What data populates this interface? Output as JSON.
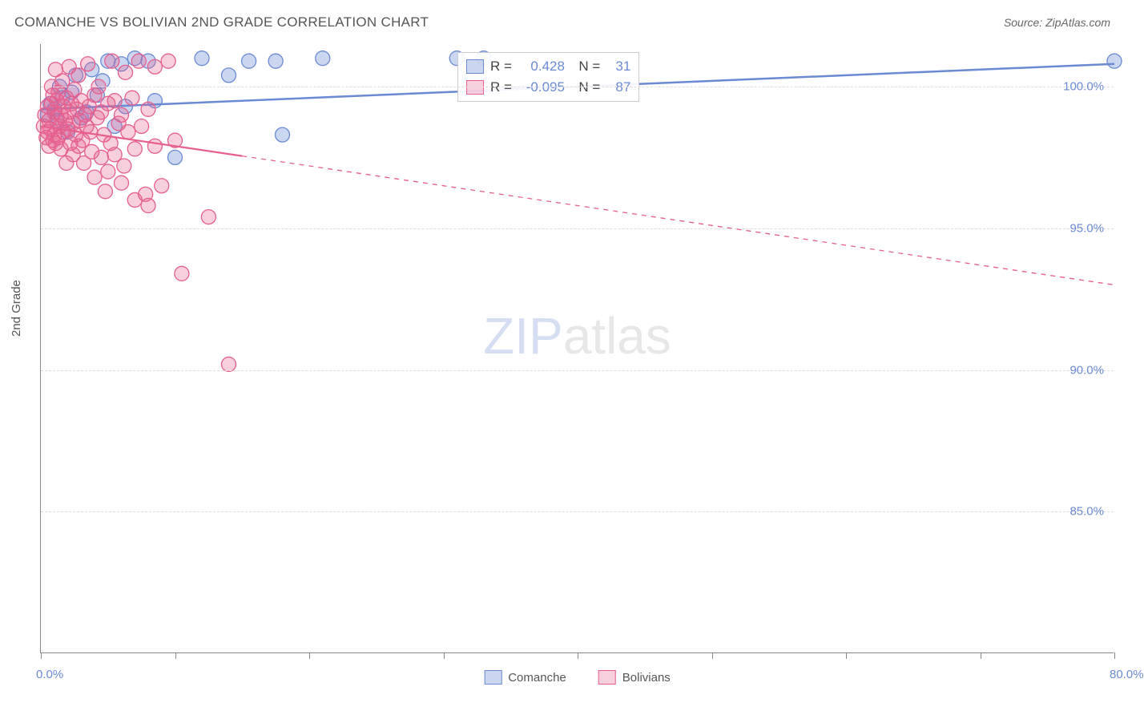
{
  "title": "COMANCHE VS BOLIVIAN 2ND GRADE CORRELATION CHART",
  "source": "Source: ZipAtlas.com",
  "ylabel": "2nd Grade",
  "watermark_zip": "ZIP",
  "watermark_atlas": "atlas",
  "chart": {
    "type": "scatter",
    "xlim": [
      0,
      80
    ],
    "ylim": [
      80,
      101.5
    ],
    "x_ticks": [
      0,
      10,
      20,
      30,
      40,
      50,
      60,
      70,
      80
    ],
    "x_tick_labels": {
      "0": "0.0%",
      "80": "80.0%"
    },
    "y_grid": [
      85,
      90,
      95,
      100
    ],
    "y_tick_labels": [
      "85.0%",
      "90.0%",
      "95.0%",
      "100.0%"
    ],
    "grid_color": "#dddddd",
    "axis_color": "#888888",
    "tick_label_color": "#6a8ad4",
    "background_color": "#ffffff",
    "series": [
      {
        "name": "Comanche",
        "color": "#6a8ad4",
        "fill": "rgba(106,138,212,0.35)",
        "marker_r": 9,
        "R": "0.428",
        "N": "31",
        "trend": {
          "x1": 0,
          "y1": 99.2,
          "x2": 80,
          "y2": 100.8,
          "dash_from_x": 80,
          "stroke_width": 2.5
        },
        "points": [
          [
            0.5,
            99.0
          ],
          [
            0.7,
            99.4
          ],
          [
            1.0,
            99.2
          ],
          [
            1.2,
            98.8
          ],
          [
            1.4,
            100.0
          ],
          [
            1.6,
            99.6
          ],
          [
            2.0,
            98.4
          ],
          [
            2.3,
            99.8
          ],
          [
            2.6,
            100.4
          ],
          [
            3.0,
            98.9
          ],
          [
            3.4,
            99.1
          ],
          [
            3.8,
            100.6
          ],
          [
            4.2,
            99.7
          ],
          [
            4.6,
            100.2
          ],
          [
            5.0,
            100.9
          ],
          [
            5.5,
            98.6
          ],
          [
            6.0,
            100.8
          ],
          [
            6.3,
            99.3
          ],
          [
            7.0,
            101.0
          ],
          [
            8.0,
            100.9
          ],
          [
            8.5,
            99.5
          ],
          [
            10.0,
            97.5
          ],
          [
            12.0,
            101.0
          ],
          [
            14.0,
            100.4
          ],
          [
            15.5,
            100.9
          ],
          [
            17.5,
            100.9
          ],
          [
            18.0,
            98.3
          ],
          [
            21.0,
            101.0
          ],
          [
            31.0,
            101.0
          ],
          [
            33.0,
            101.0
          ],
          [
            80.0,
            100.9
          ]
        ]
      },
      {
        "name": "Bolivians",
        "color": "#e65f8e",
        "fill": "rgba(230,95,142,0.30)",
        "marker_r": 9,
        "R": "-0.095",
        "N": "87",
        "trend": {
          "x1": 0,
          "y1": 98.6,
          "x2": 80,
          "y2": 93.0,
          "dash_from_x": 15,
          "stroke_width": 2.2
        },
        "points": [
          [
            0.2,
            98.6
          ],
          [
            0.3,
            99.0
          ],
          [
            0.4,
            98.2
          ],
          [
            0.5,
            98.4
          ],
          [
            0.5,
            99.3
          ],
          [
            0.6,
            98.8
          ],
          [
            0.6,
            97.9
          ],
          [
            0.7,
            98.5
          ],
          [
            0.8,
            100.0
          ],
          [
            0.8,
            99.4
          ],
          [
            0.9,
            98.1
          ],
          [
            0.9,
            99.7
          ],
          [
            1.0,
            98.3
          ],
          [
            1.0,
            99.1
          ],
          [
            1.1,
            98.0
          ],
          [
            1.1,
            100.6
          ],
          [
            1.2,
            99.5
          ],
          [
            1.2,
            98.9
          ],
          [
            1.3,
            98.2
          ],
          [
            1.3,
            99.8
          ],
          [
            1.4,
            98.6
          ],
          [
            1.5,
            99.0
          ],
          [
            1.5,
            97.8
          ],
          [
            1.6,
            100.2
          ],
          [
            1.7,
            98.4
          ],
          [
            1.7,
            99.3
          ],
          [
            1.8,
            98.8
          ],
          [
            1.9,
            99.6
          ],
          [
            1.9,
            97.3
          ],
          [
            2.0,
            98.5
          ],
          [
            2.1,
            99.1
          ],
          [
            2.1,
            100.7
          ],
          [
            2.2,
            98.0
          ],
          [
            2.3,
            99.4
          ],
          [
            2.4,
            97.6
          ],
          [
            2.4,
            98.7
          ],
          [
            2.5,
            99.9
          ],
          [
            2.6,
            98.3
          ],
          [
            2.7,
            99.2
          ],
          [
            2.8,
            97.9
          ],
          [
            2.8,
            100.4
          ],
          [
            2.9,
            98.8
          ],
          [
            3.0,
            99.5
          ],
          [
            3.1,
            98.1
          ],
          [
            3.2,
            97.3
          ],
          [
            3.3,
            99.0
          ],
          [
            3.4,
            98.6
          ],
          [
            3.5,
            100.8
          ],
          [
            3.6,
            99.3
          ],
          [
            3.7,
            98.4
          ],
          [
            3.8,
            97.7
          ],
          [
            4.0,
            99.7
          ],
          [
            4.0,
            96.8
          ],
          [
            4.2,
            98.9
          ],
          [
            4.3,
            100.0
          ],
          [
            4.5,
            99.1
          ],
          [
            4.5,
            97.5
          ],
          [
            4.7,
            98.3
          ],
          [
            4.8,
            96.3
          ],
          [
            5.0,
            99.4
          ],
          [
            5.0,
            97.0
          ],
          [
            5.2,
            98.0
          ],
          [
            5.3,
            100.9
          ],
          [
            5.5,
            97.6
          ],
          [
            5.5,
            99.5
          ],
          [
            5.8,
            98.7
          ],
          [
            6.0,
            96.6
          ],
          [
            6.0,
            99.0
          ],
          [
            6.2,
            97.2
          ],
          [
            6.3,
            100.5
          ],
          [
            6.5,
            98.4
          ],
          [
            6.8,
            99.6
          ],
          [
            7.0,
            97.8
          ],
          [
            7.0,
            96.0
          ],
          [
            7.3,
            100.9
          ],
          [
            7.5,
            98.6
          ],
          [
            7.8,
            96.2
          ],
          [
            8.0,
            99.2
          ],
          [
            8.0,
            95.8
          ],
          [
            8.5,
            100.7
          ],
          [
            8.5,
            97.9
          ],
          [
            9.0,
            96.5
          ],
          [
            9.5,
            100.9
          ],
          [
            10.0,
            98.1
          ],
          [
            10.5,
            93.4
          ],
          [
            12.5,
            95.4
          ],
          [
            14.0,
            90.2
          ]
        ]
      }
    ]
  },
  "legend_bottom": [
    {
      "label": "Comanche",
      "color": "#6a8ad4",
      "fill": "rgba(106,138,212,0.35)"
    },
    {
      "label": "Bolivians",
      "color": "#e65f8e",
      "fill": "rgba(230,95,142,0.30)"
    }
  ]
}
